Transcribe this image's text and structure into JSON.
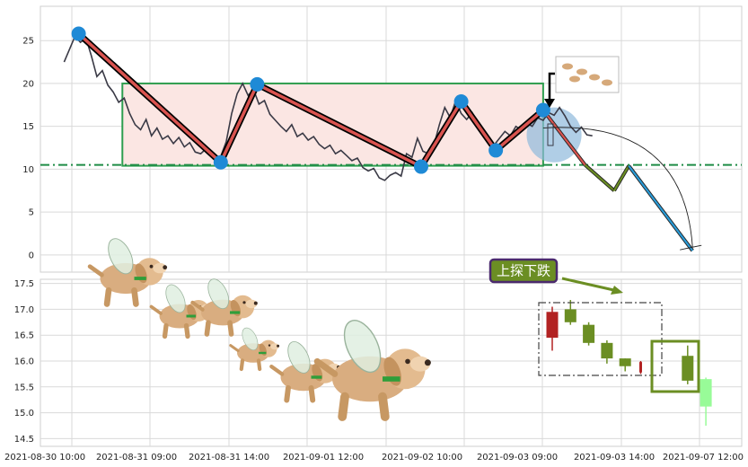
{
  "chart_data": [
    {
      "type": "line",
      "panel": "upper",
      "title": "",
      "xlabel": "",
      "ylabel": "",
      "ylim": [
        -2,
        29
      ],
      "y_ticks": [
        0,
        5,
        10,
        15,
        20,
        25
      ],
      "grid": true,
      "price_series": [
        {
          "t": 0.0,
          "y": 22.5
        },
        {
          "t": 0.3,
          "y": 24.0
        },
        {
          "t": 0.6,
          "y": 25.5
        },
        {
          "t": 0.9,
          "y": 24.8
        },
        {
          "t": 1.2,
          "y": 25.3
        },
        {
          "t": 1.5,
          "y": 23.2
        },
        {
          "t": 1.8,
          "y": 20.8
        },
        {
          "t": 2.1,
          "y": 21.5
        },
        {
          "t": 2.4,
          "y": 19.8
        },
        {
          "t": 2.7,
          "y": 19.0
        },
        {
          "t": 3.0,
          "y": 17.8
        },
        {
          "t": 3.3,
          "y": 18.3
        },
        {
          "t": 3.6,
          "y": 16.5
        },
        {
          "t": 3.9,
          "y": 15.2
        },
        {
          "t": 4.2,
          "y": 14.6
        },
        {
          "t": 4.5,
          "y": 15.8
        },
        {
          "t": 4.8,
          "y": 13.9
        },
        {
          "t": 5.1,
          "y": 14.8
        },
        {
          "t": 5.4,
          "y": 13.5
        },
        {
          "t": 5.7,
          "y": 13.9
        },
        {
          "t": 6.0,
          "y": 13.0
        },
        {
          "t": 6.3,
          "y": 13.7
        },
        {
          "t": 6.6,
          "y": 12.6
        },
        {
          "t": 6.9,
          "y": 13.1
        },
        {
          "t": 7.2,
          "y": 12.0
        },
        {
          "t": 7.5,
          "y": 11.8
        },
        {
          "t": 7.8,
          "y": 12.4
        },
        {
          "t": 8.1,
          "y": 11.5
        },
        {
          "t": 8.4,
          "y": 10.8
        },
        {
          "t": 8.6,
          "y": 11.5
        },
        {
          "t": 8.9,
          "y": 13.2
        },
        {
          "t": 9.2,
          "y": 16.5
        },
        {
          "t": 9.5,
          "y": 18.8
        },
        {
          "t": 9.8,
          "y": 20.0
        },
        {
          "t": 10.1,
          "y": 18.6
        },
        {
          "t": 10.4,
          "y": 19.3
        },
        {
          "t": 10.7,
          "y": 17.6
        },
        {
          "t": 11.0,
          "y": 18.0
        },
        {
          "t": 11.3,
          "y": 16.4
        },
        {
          "t": 11.6,
          "y": 15.7
        },
        {
          "t": 11.9,
          "y": 15.0
        },
        {
          "t": 12.2,
          "y": 14.4
        },
        {
          "t": 12.5,
          "y": 15.2
        },
        {
          "t": 12.8,
          "y": 13.8
        },
        {
          "t": 13.1,
          "y": 14.2
        },
        {
          "t": 13.4,
          "y": 13.4
        },
        {
          "t": 13.7,
          "y": 13.8
        },
        {
          "t": 14.0,
          "y": 12.9
        },
        {
          "t": 14.3,
          "y": 12.4
        },
        {
          "t": 14.6,
          "y": 12.8
        },
        {
          "t": 14.9,
          "y": 11.8
        },
        {
          "t": 15.2,
          "y": 12.2
        },
        {
          "t": 15.5,
          "y": 11.6
        },
        {
          "t": 15.8,
          "y": 11.0
        },
        {
          "t": 16.1,
          "y": 11.3
        },
        {
          "t": 16.4,
          "y": 10.2
        },
        {
          "t": 16.7,
          "y": 9.8
        },
        {
          "t": 17.0,
          "y": 10.1
        },
        {
          "t": 17.3,
          "y": 9.0
        },
        {
          "t": 17.6,
          "y": 8.7
        },
        {
          "t": 17.9,
          "y": 9.3
        },
        {
          "t": 18.2,
          "y": 9.6
        },
        {
          "t": 18.5,
          "y": 9.2
        },
        {
          "t": 18.8,
          "y": 11.8
        },
        {
          "t": 19.1,
          "y": 11.4
        },
        {
          "t": 19.4,
          "y": 13.6
        },
        {
          "t": 19.7,
          "y": 12.1
        },
        {
          "t": 20.0,
          "y": 11.8
        },
        {
          "t": 20.3,
          "y": 12.8
        },
        {
          "t": 20.6,
          "y": 15.2
        },
        {
          "t": 20.9,
          "y": 17.2
        },
        {
          "t": 21.2,
          "y": 16.0
        },
        {
          "t": 21.5,
          "y": 18.0
        },
        {
          "t": 21.8,
          "y": 16.5
        },
        {
          "t": 22.1,
          "y": 15.8
        },
        {
          "t": 22.4,
          "y": 16.6
        },
        {
          "t": 22.7,
          "y": 15.4
        },
        {
          "t": 23.0,
          "y": 14.6
        },
        {
          "t": 23.3,
          "y": 13.8
        },
        {
          "t": 23.6,
          "y": 12.8
        },
        {
          "t": 23.9,
          "y": 13.6
        },
        {
          "t": 24.2,
          "y": 14.4
        },
        {
          "t": 24.5,
          "y": 13.9
        },
        {
          "t": 24.8,
          "y": 15.0
        },
        {
          "t": 25.1,
          "y": 14.6
        },
        {
          "t": 25.4,
          "y": 15.4
        },
        {
          "t": 25.7,
          "y": 15.0
        },
        {
          "t": 26.0,
          "y": 16.0
        },
        {
          "t": 26.3,
          "y": 15.7
        },
        {
          "t": 26.6,
          "y": 16.6
        },
        {
          "t": 26.9,
          "y": 16.3
        },
        {
          "t": 27.2,
          "y": 17.2
        },
        {
          "t": 27.5,
          "y": 16.2
        },
        {
          "t": 27.8,
          "y": 15.0
        },
        {
          "t": 28.1,
          "y": 14.3
        },
        {
          "t": 28.4,
          "y": 14.9
        },
        {
          "t": 28.7,
          "y": 14.0
        },
        {
          "t": 29.0,
          "y": 13.9
        }
      ],
      "pattern_points": [
        {
          "t": 0.8,
          "y": 25.8
        },
        {
          "t": 8.6,
          "y": 10.8
        },
        {
          "t": 10.6,
          "y": 19.9
        },
        {
          "t": 19.6,
          "y": 10.3
        },
        {
          "t": 21.8,
          "y": 17.9
        },
        {
          "t": 23.7,
          "y": 12.2
        },
        {
          "t": 26.3,
          "y": 16.9
        }
      ],
      "box": {
        "t_start": 3.2,
        "t_end": 26.3,
        "y_low": 10.4,
        "y_high": 20.0
      },
      "support_level": 10.5,
      "projection": [
        {
          "t": 26.3,
          "y": 16.9
        },
        {
          "t": 28.6,
          "y": 10.5
        },
        {
          "t": 30.2,
          "y": 7.5
        },
        {
          "t": 31.0,
          "y": 10.4
        },
        {
          "t": 34.5,
          "y": 0.5
        }
      ],
      "circle_center": {
        "t": 26.9,
        "y": 14.0
      },
      "circle_radius_y": 3.2
    },
    {
      "type": "candlestick",
      "panel": "lower",
      "title": "",
      "xlabel": "",
      "ylabel": "",
      "ylim": [
        14.35,
        17.58
      ],
      "y_ticks": [
        14.5,
        15.0,
        15.5,
        16.0,
        16.5,
        17.0,
        17.5
      ],
      "x_tick_labels": [
        "2021-08-30 10:00",
        "2021-08-31 09:00",
        "2021-08-31 14:00",
        "2021-09-01 12:00",
        "2021-09-02 10:00",
        "2021-09-03 09:00",
        "2021-09-03 14:00",
        "2021-09-07 12:00"
      ],
      "grid": true,
      "annotation_label": "上探下跌",
      "candles": [
        {
          "color": "#b22222",
          "open": 16.95,
          "close": 16.45,
          "high": 17.05,
          "low": 16.2
        },
        {
          "color": "#6b8e23",
          "open": 17.0,
          "close": 16.75,
          "high": 17.18,
          "low": 16.7
        },
        {
          "color": "#6b8e23",
          "open": 16.7,
          "close": 16.35,
          "high": 16.75,
          "low": 16.3
        },
        {
          "color": "#6b8e23",
          "open": 16.35,
          "close": 16.05,
          "high": 16.4,
          "low": 15.95
        },
        {
          "color": "#6b8e23",
          "open": 16.05,
          "close": 15.9,
          "high": 16.05,
          "low": 15.8
        },
        {
          "color": "#b22222",
          "open": 15.98,
          "close": 15.78,
          "high": 16.0,
          "low": 15.75
        },
        {
          "color": "#6b8e23",
          "open": 16.1,
          "close": 15.62,
          "high": 16.3,
          "low": 15.55
        },
        {
          "color": "#98fb98",
          "open": 15.65,
          "close": 15.12,
          "high": 15.68,
          "low": 14.75
        }
      ]
    }
  ],
  "colors": {
    "price_line": "#3a3a46",
    "pattern_line_outer": "#000000",
    "pattern_line_inner": "#d9534f",
    "pattern_points": "#1f8ad6",
    "box_fill": "#fbe6e3",
    "box_stroke": "#2e9e4f",
    "support_line": "#1e8c46",
    "projection_down1": "#d9534f",
    "projection_up": "#6b8e23",
    "projection_down2": "#2a9bd7",
    "circle_fill": "#8fb9dc",
    "label_fill": "#6b8e23",
    "label_border": "#4b2a6e",
    "highlight_box": "#6b8e23",
    "dashed_box": "#444444"
  },
  "icons": {
    "decoration": "flying-puppy-sticker",
    "arrow": "down-arrow-icon"
  }
}
